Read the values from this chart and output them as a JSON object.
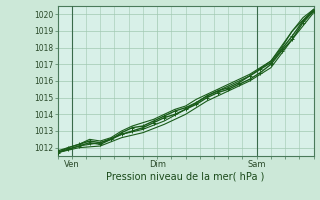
{
  "title": "",
  "xlabel": "Pression niveau de la mer( hPa )",
  "ylabel": "",
  "bg_color": "#cce8d8",
  "plot_bg_color": "#d8f0e8",
  "grid_color": "#a0c8b0",
  "line_color": "#1a5c1a",
  "ylim": [
    1011.5,
    1020.5
  ],
  "xlim": [
    0,
    72
  ],
  "yticks": [
    1012,
    1013,
    1014,
    1015,
    1016,
    1017,
    1018,
    1019,
    1020
  ],
  "xtick_positions": [
    4,
    28,
    56
  ],
  "xtick_labels": [
    "Ven",
    "Dim",
    "Sam"
  ],
  "vline_positions": [
    4,
    56
  ],
  "series": [
    {
      "x": [
        0,
        3,
        6,
        9,
        12,
        15,
        18,
        21,
        24,
        27,
        30,
        33,
        36,
        39,
        42,
        45,
        48,
        51,
        54,
        57,
        60,
        63,
        66,
        69,
        72
      ],
      "y": [
        1011.7,
        1011.9,
        1012.1,
        1012.3,
        1012.2,
        1012.5,
        1012.8,
        1013.0,
        1013.2,
        1013.5,
        1013.8,
        1014.0,
        1014.3,
        1014.6,
        1015.0,
        1015.3,
        1015.5,
        1015.8,
        1016.1,
        1016.5,
        1017.0,
        1017.8,
        1018.5,
        1019.5,
        1020.2
      ],
      "marker": true,
      "lw": 1.0
    },
    {
      "x": [
        0,
        3,
        6,
        9,
        12,
        15,
        18,
        21,
        24,
        27,
        30,
        33,
        36,
        39,
        42,
        45,
        48,
        51,
        54,
        57,
        60,
        63,
        66,
        69,
        72
      ],
      "y": [
        1011.7,
        1012.0,
        1012.2,
        1012.5,
        1012.4,
        1012.6,
        1013.0,
        1013.3,
        1013.5,
        1013.7,
        1014.0,
        1014.3,
        1014.5,
        1014.9,
        1015.2,
        1015.5,
        1015.8,
        1016.1,
        1016.4,
        1016.8,
        1017.2,
        1018.0,
        1019.0,
        1019.8,
        1020.3
      ],
      "marker": false,
      "lw": 0.8
    },
    {
      "x": [
        0,
        6,
        12,
        18,
        24,
        30,
        36,
        42,
        48,
        54,
        60,
        66,
        72
      ],
      "y": [
        1011.7,
        1012.1,
        1012.3,
        1012.8,
        1013.1,
        1013.6,
        1014.3,
        1015.1,
        1015.7,
        1016.3,
        1017.2,
        1019.0,
        1020.3
      ],
      "marker": false,
      "lw": 0.8
    },
    {
      "x": [
        0,
        6,
        12,
        18,
        24,
        30,
        36,
        42,
        48,
        54,
        60,
        66,
        72
      ],
      "y": [
        1011.7,
        1012.0,
        1012.1,
        1012.6,
        1012.9,
        1013.4,
        1014.0,
        1014.8,
        1015.4,
        1016.0,
        1016.8,
        1018.5,
        1020.1
      ],
      "marker": false,
      "lw": 0.8
    },
    {
      "x": [
        0,
        3,
        6,
        9,
        12,
        15,
        18,
        21,
        24,
        27,
        30,
        33,
        36,
        39,
        42,
        45,
        48,
        51,
        54,
        57,
        60,
        63,
        66,
        69,
        72
      ],
      "y": [
        1011.8,
        1012.0,
        1012.2,
        1012.4,
        1012.3,
        1012.5,
        1012.9,
        1013.2,
        1013.3,
        1013.6,
        1013.9,
        1014.2,
        1014.4,
        1014.7,
        1015.1,
        1015.4,
        1015.6,
        1015.9,
        1016.3,
        1016.7,
        1017.1,
        1017.9,
        1018.7,
        1019.6,
        1020.2
      ],
      "marker": true,
      "lw": 1.0
    }
  ]
}
